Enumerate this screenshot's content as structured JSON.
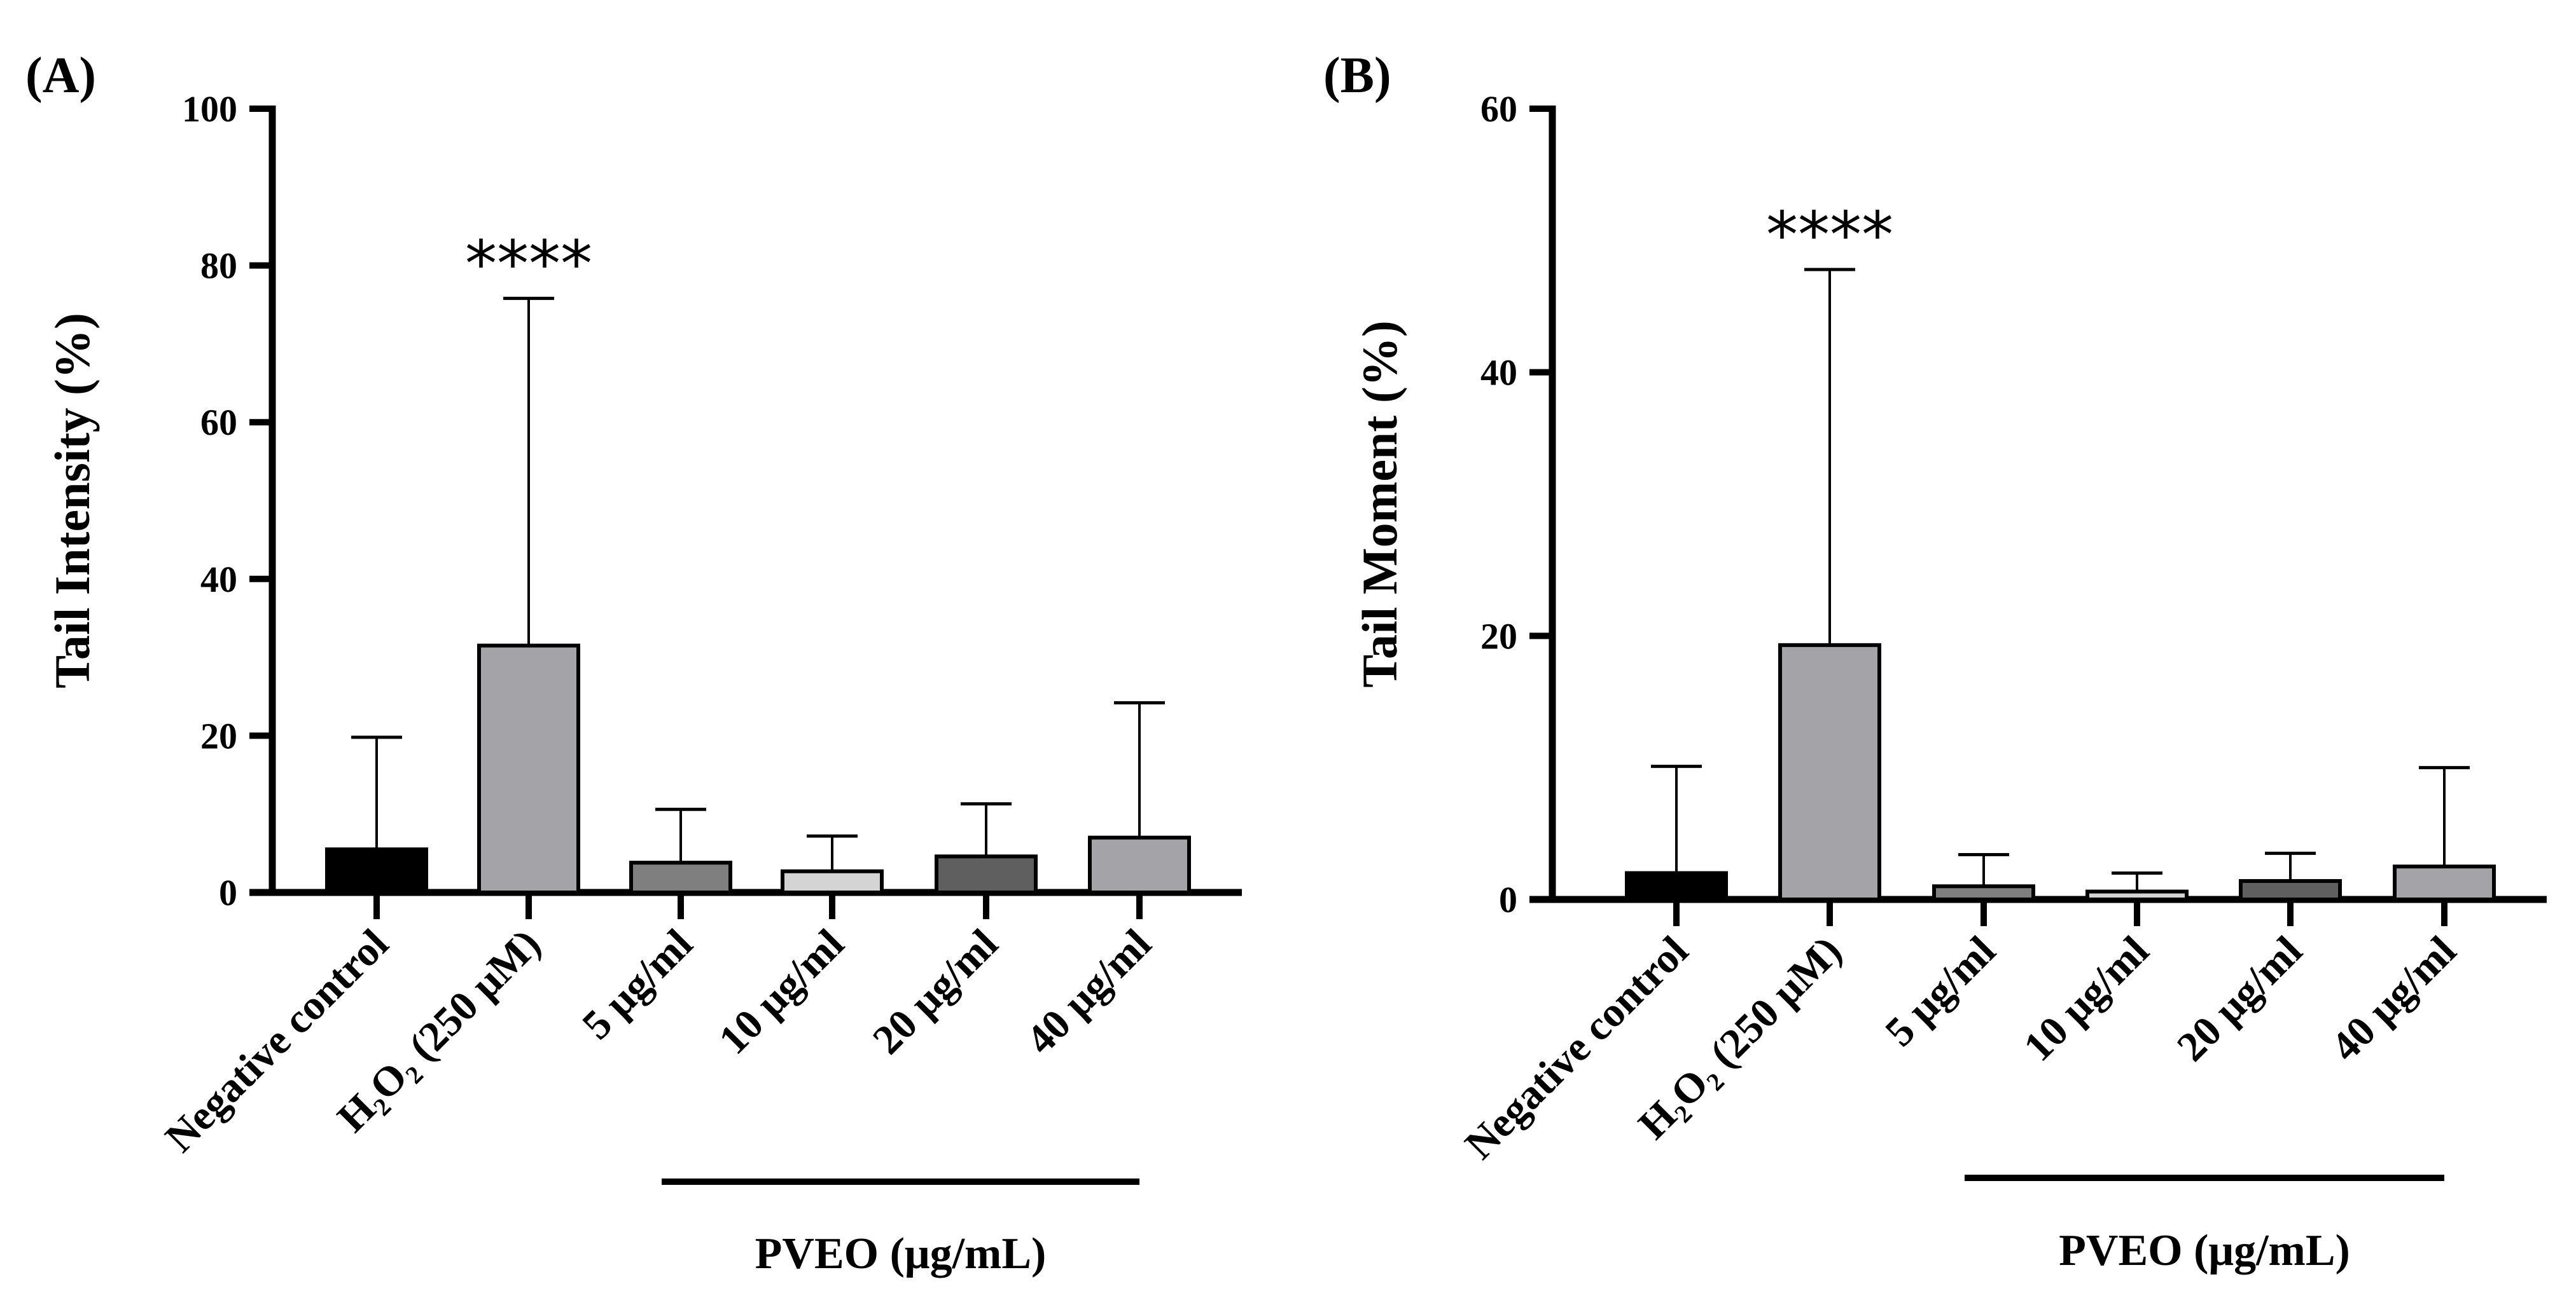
{
  "chart_data": [
    {
      "type": "bar",
      "panel_label": "(A)",
      "title": "",
      "xlabel": "",
      "ylabel": "Tail Intensity (%)",
      "ylim": [
        0,
        100
      ],
      "yticks": [
        0,
        20,
        40,
        60,
        80,
        100
      ],
      "categories": [
        "Negative control",
        "H₂O₂ (250 μM)",
        "5 μg/ml",
        "10 μg/ml",
        "20 μg/ml",
        "40 μg/ml"
      ],
      "values": [
        5.5,
        31.5,
        3.8,
        2.7,
        4.6,
        7.0
      ],
      "error_upper": [
        19.8,
        75.8,
        10.6,
        7.2,
        11.3,
        24.2
      ],
      "colors": [
        "#000000",
        "#a3a3a8",
        "#7f7f7f",
        "#d4d4d4",
        "#5f5f5f",
        "#a3a3a8"
      ],
      "annotations": [
        {
          "category": "H₂O₂ (250 μM)",
          "text": "****"
        }
      ],
      "group_label": {
        "text": "PVEO (μg/mL)",
        "spans": [
          "5 μg/ml",
          "40 μg/ml"
        ]
      }
    },
    {
      "type": "bar",
      "panel_label": "(B)",
      "title": "",
      "xlabel": "",
      "ylabel": "Tail Moment (%)",
      "ylim": [
        0,
        60
      ],
      "yticks": [
        0,
        20,
        40,
        60
      ],
      "categories": [
        "Negative control",
        "H₂O₂ (250 μM)",
        "5 μg/ml",
        "10 μg/ml",
        "20 μg/ml",
        "40 μg/ml"
      ],
      "values": [
        2.0,
        19.3,
        1.0,
        0.6,
        1.4,
        2.5
      ],
      "error_upper": [
        10.1,
        47.8,
        3.4,
        2.0,
        3.5,
        10.0
      ],
      "colors": [
        "#000000",
        "#a3a3a8",
        "#7f7f7f",
        "#d4d4d4",
        "#5f5f5f",
        "#a3a3a8"
      ],
      "annotations": [
        {
          "category": "H₂O₂ (250 μM)",
          "text": "****"
        }
      ],
      "group_label": {
        "text": "PVEO (μg/mL)",
        "spans": [
          "5 μg/ml",
          "40 μg/ml"
        ]
      }
    }
  ]
}
